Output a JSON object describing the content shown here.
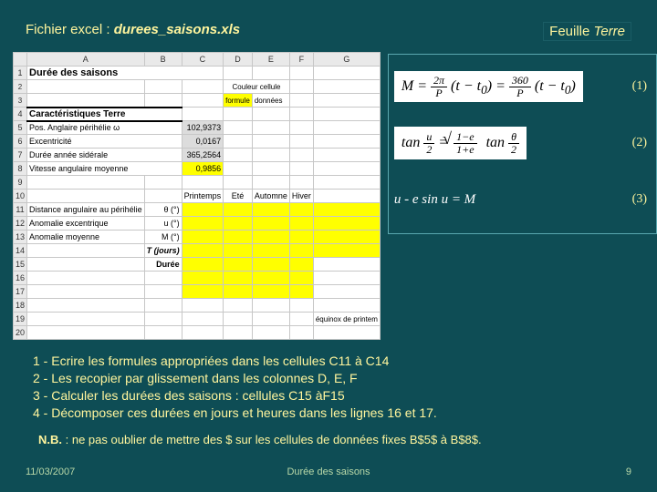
{
  "header": {
    "file_prefix": "Fichier excel : ",
    "filename": "durees_saisons.xls",
    "sheet_prefix": "Feuille ",
    "sheet_name": "Terre"
  },
  "sheet": {
    "cols": [
      "A",
      "B",
      "C",
      "D",
      "E",
      "F",
      "G"
    ],
    "row1_title": "Durée des saisons",
    "legend_label": "Couleur cellule",
    "legend_formule": "formule",
    "legend_donnees": "données",
    "section_caract": "Caractéristiques Terre",
    "params": [
      {
        "label": "Pos. Anglaire périhélie ω",
        "val": "102,9373"
      },
      {
        "label": "Excentricité",
        "val": "0,0167"
      },
      {
        "label": "Durée année sidérale",
        "val": "365,2564"
      },
      {
        "label": "Vitesse angulaire moyenne",
        "val": "0,9856"
      }
    ],
    "seasons": [
      "Printemps",
      "Eté",
      "Automne",
      "Hiver"
    ],
    "vars": [
      {
        "label": "Distance angulaire au périhélie",
        "sym": "θ (°)"
      },
      {
        "label": "Anomalie excentrique",
        "sym": "u (°)"
      },
      {
        "label": "Anomalie moyenne",
        "sym": "M (°)"
      },
      {
        "label": "",
        "sym": "T (jours)"
      },
      {
        "label": "",
        "sym": "Durée"
      }
    ],
    "equinox_label": "équinox\nde printem"
  },
  "formulas": {
    "eq1_num": "(1)",
    "eq2_num": "(2)",
    "eq3_text": "u - e sin u = M",
    "eq3_num": "(3)"
  },
  "instructions": {
    "l1": "1 - Ecrire les formules appropriées dans les cellules C11 à C14",
    "l2": "2 - Les recopier par glissement dans les colonnes D, E, F",
    "l3": "3 - Calculer les durées des saisons : cellules C15 àF15",
    "l4": "4 - Décomposer ces durées en jours et heures dans les lignes 16 et 17."
  },
  "nb": {
    "label": "N.B.",
    "text": " : ne pas oublier de mettre des $ sur les cellules de données fixes B$5$ à B$8$."
  },
  "footer": {
    "date": "11/03/2007",
    "title": "Durée des saisons",
    "page": "9"
  },
  "colors": {
    "bg": "#0e4d55",
    "accent": "#ffeb3b",
    "yellow": "#ffff00",
    "grey": "#dcdcdc"
  }
}
